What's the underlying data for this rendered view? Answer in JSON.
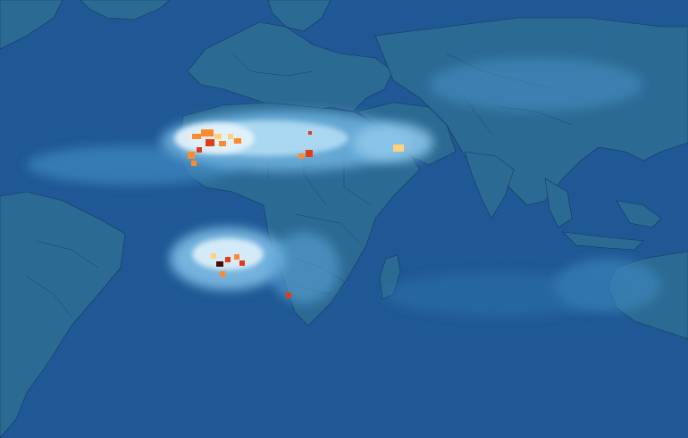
{
  "map": {
    "colors": {
      "ocean": "#1f5894",
      "land": "#2b6a93",
      "border": "#0c2238",
      "haze_light": "#5aa3d6",
      "haze_bright": "#a8d6f2",
      "haze_white": "#e6f4fb",
      "hot_yellow": "#ffd27a",
      "hot_orange": "#ff8a2a",
      "hot_red": "#e63b16",
      "hot_dark": "#4a0b08"
    },
    "legend": []
  }
}
